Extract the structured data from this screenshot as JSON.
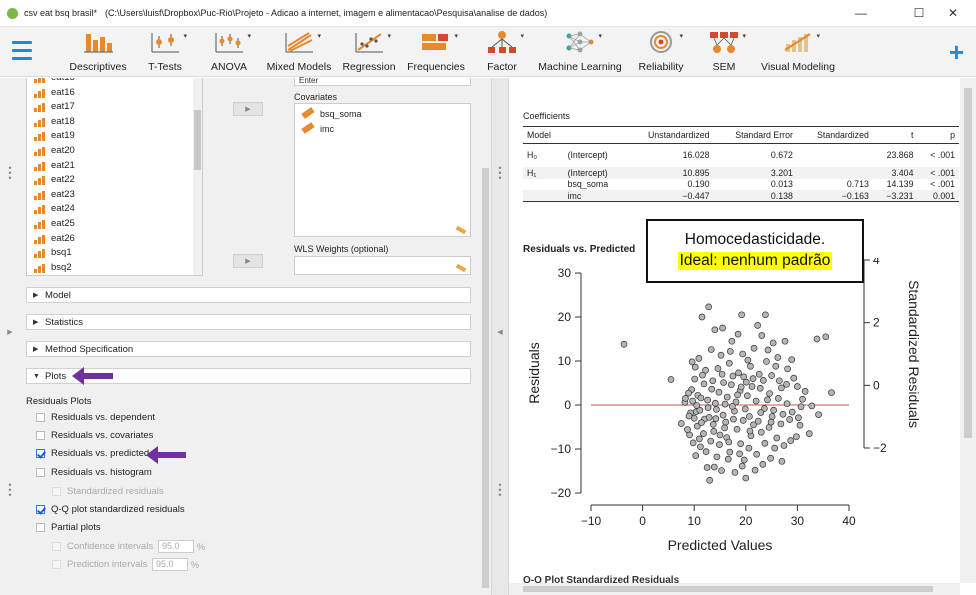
{
  "window": {
    "title": "csv eat bsq brasil*",
    "path": "(C:\\Users\\luisf\\Dropbox\\Puc-Rio\\Projeto - Adicao a internet, imagem e alimentacao\\Pesquisa\\analise de dados)",
    "minimize": "—",
    "maximize": "☐",
    "close": "✕"
  },
  "ribbon": {
    "items": [
      {
        "label": "Descriptives"
      },
      {
        "label": "T-Tests"
      },
      {
        "label": "ANOVA"
      },
      {
        "label": "Mixed Models"
      },
      {
        "label": "Regression"
      },
      {
        "label": "Frequencies"
      },
      {
        "label": "Factor"
      },
      {
        "label": "Machine Learning"
      },
      {
        "label": "Reliability"
      },
      {
        "label": "SEM"
      },
      {
        "label": "Visual Modeling"
      }
    ],
    "dropdown_glyph": "▾",
    "plus": "+"
  },
  "variables": {
    "items": [
      {
        "name": "eat15"
      },
      {
        "name": "eat16"
      },
      {
        "name": "eat17"
      },
      {
        "name": "eat18"
      },
      {
        "name": "eat19"
      },
      {
        "name": "eat20"
      },
      {
        "name": "eat21"
      },
      {
        "name": "eat22"
      },
      {
        "name": "eat23"
      },
      {
        "name": "eat24"
      },
      {
        "name": "eat25"
      },
      {
        "name": "eat26"
      },
      {
        "name": "bsq1"
      },
      {
        "name": "bsq2"
      }
    ]
  },
  "assign": {
    "arrow_glyph": "▶",
    "collapse_glyph": "◀",
    "enter_label": "Enter",
    "covariates_label": "Covariates",
    "covariates": [
      "bsq_soma",
      "imc"
    ],
    "wls_label": "WLS Weights (optional)"
  },
  "sections": {
    "model": "Model",
    "statistics": "Statistics",
    "method": "Method Specification",
    "plots": "Plots",
    "collapsed_glyph": "▶",
    "expanded_glyph": "▼"
  },
  "plots_options": {
    "heading": "Residuals Plots",
    "res_dependent": "Residuals vs. dependent",
    "res_covariates": "Residuals vs. covariates",
    "res_predicted": "Residuals vs. predicted",
    "res_histogram": "Residuals vs. histogram",
    "standardized": "Standardized residuals",
    "qq": "Q-Q plot standardized residuals",
    "partial": "Partial plots",
    "confidence": "Confidence intervals",
    "confidence_value": "95.0",
    "prediction": "Prediction intervals",
    "prediction_value": "95.0",
    "percent": "%"
  },
  "coefficients": {
    "title": "Coefficients",
    "headers": [
      "Model",
      "",
      "Unstandardized",
      "Standard Error",
      "Standardized",
      "t",
      "p"
    ],
    "rows": [
      {
        "model": "H₀",
        "term": "(Intercept)",
        "unstd": "16.028",
        "se": "0.672",
        "std": "",
        "t": "23.868",
        "p": "< .001"
      },
      {
        "model": "H₁",
        "term": "(Intercept)",
        "unstd": "10.895",
        "se": "3.201",
        "std": "",
        "t": "3.404",
        "p": "< .001"
      },
      {
        "model": "",
        "term": "bsq_soma",
        "unstd": "0.190",
        "se": "0.013",
        "std": "0.713",
        "t": "14.139",
        "p": "< .001"
      },
      {
        "model": "",
        "term": "imc",
        "unstd": "−0.447",
        "se": "0.138",
        "std": "−0.163",
        "t": "−3.231",
        "p": "0.001"
      }
    ]
  },
  "callout": {
    "line1": "Homocedasticidade.",
    "line2": "Ideal: nenhum padrão"
  },
  "next_section_title": "Q-Q Plot Standardized Residuals",
  "colors": {
    "accent": "#1e88e5",
    "icon_orange": "#e8892b",
    "annotation_arrow": "#7030a0",
    "zero_line": "#d05050",
    "highlight": "#ffff00"
  },
  "chart_data": {
    "type": "scatter",
    "title": "Residuals vs. Predicted",
    "xlabel": "Predicted Values",
    "ylabel": "Residuals",
    "y2label": "Standardized Residuals",
    "xlim": [
      -10,
      40
    ],
    "ylim": [
      -20,
      30
    ],
    "y2lim": [
      -2,
      4
    ],
    "xticks": [
      -10,
      0,
      10,
      20,
      30,
      40
    ],
    "yticks": [
      -20,
      -10,
      0,
      10,
      20,
      30
    ],
    "y2ticks": [
      -2,
      0,
      2,
      4
    ],
    "reference_line": 0,
    "points": [
      [
        -3.6,
        13.8
      ],
      [
        5.5,
        5.8
      ],
      [
        8.2,
        0.6
      ],
      [
        7.5,
        -4.2
      ],
      [
        9.1,
        -6.8
      ],
      [
        10.4,
        -1.5
      ],
      [
        11.2,
        -9.5
      ],
      [
        12.0,
        -3.2
      ],
      [
        9.6,
        9.8
      ],
      [
        10.2,
        8.6
      ],
      [
        11.5,
        20.0
      ],
      [
        12.8,
        22.3
      ],
      [
        14.0,
        17.1
      ],
      [
        15.5,
        17.5
      ],
      [
        17.3,
        14.5
      ],
      [
        19.2,
        20.5
      ],
      [
        20.4,
        10.2
      ],
      [
        22.3,
        18.1
      ],
      [
        23.8,
        20.5
      ],
      [
        24.3,
        12.5
      ],
      [
        25.8,
        8.8
      ],
      [
        26.5,
        5.5
      ],
      [
        27.6,
        14.5
      ],
      [
        28.1,
        8.2
      ],
      [
        29.3,
        6.1
      ],
      [
        30.0,
        4.2
      ],
      [
        31.5,
        3.1
      ],
      [
        33.8,
        15.0
      ],
      [
        35.5,
        15.5
      ],
      [
        36.6,
        2.8
      ],
      [
        34.1,
        -2.2
      ],
      [
        32.3,
        -6.5
      ],
      [
        31.0,
        1.3
      ],
      [
        30.5,
        -4.6
      ],
      [
        28.5,
        -3.3
      ],
      [
        27.4,
        -9.2
      ],
      [
        26.0,
        -7.5
      ],
      [
        25.1,
        -2.6
      ],
      [
        24.2,
        1.2
      ],
      [
        23.0,
        -6.2
      ],
      [
        22.1,
        -11.2
      ],
      [
        21.5,
        -4.5
      ],
      [
        20.6,
        -9.8
      ],
      [
        19.7,
        -12.5
      ],
      [
        19.0,
        -8.8
      ],
      [
        18.3,
        -5.5
      ],
      [
        17.6,
        -3.2
      ],
      [
        16.9,
        -10.7
      ],
      [
        16.3,
        -7.4
      ],
      [
        15.6,
        -2.3
      ],
      [
        15.0,
        -6.8
      ],
      [
        14.4,
        -11.8
      ],
      [
        13.7,
        -4.4
      ],
      [
        13.2,
        -8.2
      ],
      [
        12.5,
        -14.2
      ],
      [
        11.8,
        -6.5
      ],
      [
        11.1,
        -1.2
      ],
      [
        10.6,
        -4.8
      ],
      [
        10.0,
        -3.0
      ],
      [
        9.3,
        -1.8
      ],
      [
        8.7,
        -5.6
      ],
      [
        8.3,
        1.5
      ],
      [
        9.5,
        3.5
      ],
      [
        10.7,
        2.2
      ],
      [
        11.9,
        4.8
      ],
      [
        12.6,
        1.1
      ],
      [
        13.4,
        3.6
      ],
      [
        14.1,
        0.4
      ],
      [
        14.8,
        2.9
      ],
      [
        15.7,
        5.1
      ],
      [
        16.4,
        1.8
      ],
      [
        17.2,
        4.6
      ],
      [
        18.1,
        0.7
      ],
      [
        18.9,
        3.3
      ],
      [
        19.6,
        6.4
      ],
      [
        20.3,
        2.1
      ],
      [
        21.2,
        4.2
      ],
      [
        22.0,
        0.9
      ],
      [
        22.8,
        3.8
      ],
      [
        23.6,
        -0.8
      ],
      [
        24.6,
        2.6
      ],
      [
        25.4,
        -1.2
      ],
      [
        26.3,
        1.5
      ],
      [
        27.2,
        -2.1
      ],
      [
        28.0,
        0.3
      ],
      [
        29.0,
        -1.6
      ],
      [
        29.8,
        -7.2
      ],
      [
        30.7,
        -0.4
      ],
      [
        21.8,
        -14.8
      ],
      [
        23.3,
        -13.5
      ],
      [
        20.0,
        -16.6
      ],
      [
        17.9,
        -15.3
      ],
      [
        15.3,
        -14.9
      ],
      [
        24.8,
        -12.1
      ],
      [
        27.0,
        -12.8
      ],
      [
        13.0,
        -17.1
      ],
      [
        18.6,
        7.3
      ],
      [
        20.9,
        8.8
      ],
      [
        16.8,
        9.5
      ],
      [
        14.6,
        8.3
      ],
      [
        12.2,
        7.9
      ],
      [
        22.6,
        7.0
      ],
      [
        24.0,
        9.9
      ],
      [
        25.3,
        14.1
      ],
      [
        19.4,
        11.6
      ],
      [
        17.0,
        12.2
      ],
      [
        15.2,
        11.3
      ],
      [
        13.3,
        12.6
      ],
      [
        21.6,
        12.9
      ],
      [
        10.9,
        10.6
      ],
      [
        23.1,
        15.8
      ],
      [
        18.5,
        16.1
      ],
      [
        20.7,
        -2.6
      ],
      [
        19.9,
        -0.9
      ],
      [
        17.8,
        -1.4
      ],
      [
        16.1,
        -3.9
      ],
      [
        14.3,
        -1.0
      ],
      [
        12.9,
        -2.8
      ],
      [
        11.4,
        -4.0
      ],
      [
        9.8,
        -8.6
      ],
      [
        22.4,
        -3.7
      ],
      [
        24.5,
        -5.1
      ],
      [
        26.8,
        -4.3
      ],
      [
        28.7,
        -8.1
      ],
      [
        23.7,
        -8.7
      ],
      [
        21.0,
        -7.0
      ],
      [
        18.8,
        -11.1
      ],
      [
        16.6,
        -12.3
      ],
      [
        14.9,
        -9.0
      ],
      [
        12.3,
        -10.6
      ],
      [
        10.3,
        -11.5
      ],
      [
        13.9,
        -14.1
      ],
      [
        19.3,
        -13.9
      ],
      [
        25.6,
        -9.8
      ],
      [
        26.9,
        3.9
      ],
      [
        28.9,
        10.3
      ],
      [
        9.0,
        -2.5
      ],
      [
        8.9,
        2.7
      ],
      [
        10.1,
        5.9
      ],
      [
        11.6,
        6.8
      ],
      [
        13.6,
        5.5
      ],
      [
        15.4,
        7.0
      ],
      [
        17.5,
        6.6
      ],
      [
        19.1,
        4.1
      ],
      [
        20.1,
        5.2
      ],
      [
        21.4,
        6.0
      ],
      [
        23.4,
        5.6
      ],
      [
        25.0,
        6.7
      ],
      [
        26.2,
        10.8
      ],
      [
        27.9,
        4.7
      ],
      [
        30.2,
        -2.9
      ],
      [
        32.8,
        -0.2
      ],
      [
        16.0,
        0.2
      ],
      [
        17.4,
        -0.3
      ],
      [
        18.4,
        2.3
      ],
      [
        13.8,
        -6.0
      ],
      [
        11.0,
        -7.7
      ],
      [
        15.9,
        -5.2
      ],
      [
        22.9,
        -1.7
      ],
      [
        24.9,
        -3.9
      ],
      [
        20.8,
        -5.9
      ],
      [
        19.5,
        -3.5
      ],
      [
        16.7,
        -8.4
      ],
      [
        14.2,
        -3.1
      ],
      [
        12.7,
        -0.6
      ],
      [
        11.3,
        1.6
      ],
      [
        10.5,
        -0.1
      ],
      [
        9.7,
        0.9
      ]
    ]
  }
}
